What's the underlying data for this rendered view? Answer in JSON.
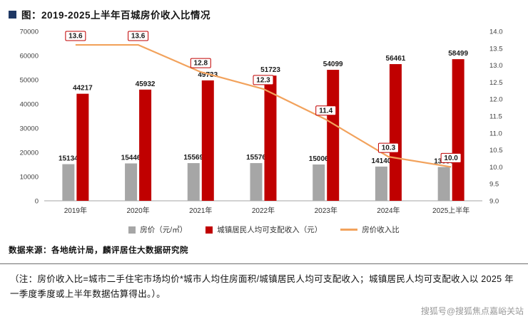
{
  "header": {
    "title": "图：2019-2025上半年百城房价收入比情况",
    "bullet_color": "#1f3864"
  },
  "chart_data": {
    "type": "combo-bar-line",
    "title": "图：2019-2025上半年百城房价收入比情况",
    "categories": [
      "2019年",
      "2020年",
      "2021年",
      "2022年",
      "2023年",
      "2024年",
      "2025上半年"
    ],
    "series": [
      {
        "name": "房价（元/㎡）",
        "type": "bar",
        "axis": "left",
        "color": "#a6a6a6",
        "values": [
          15134,
          15446,
          15569,
          15576,
          15006,
          14140,
          13956
        ]
      },
      {
        "name": "城镇居民人均可支配收入（元）",
        "type": "bar",
        "axis": "left",
        "color": "#c00000",
        "values": [
          44217,
          45932,
          49733,
          51723,
          54099,
          56461,
          58499
        ]
      },
      {
        "name": "房价收入比",
        "type": "line",
        "axis": "right",
        "color": "#f2a25c",
        "values": [
          13.6,
          13.6,
          12.8,
          12.3,
          11.4,
          10.3,
          10.0
        ]
      }
    ],
    "left_axis": {
      "min": 0,
      "max": 70000,
      "ticks": [
        "70000",
        "60000",
        "50000",
        "40000",
        "30000",
        "20000",
        "10000",
        "0"
      ]
    },
    "right_axis": {
      "min": 9.0,
      "max": 14.0,
      "ticks": [
        "14.0",
        "13.5",
        "13.0",
        "12.5",
        "12.0",
        "11.5",
        "11.0",
        "10.5",
        "10.0",
        "9.5",
        "9.0"
      ]
    },
    "grid": false,
    "legend_position": "bottom",
    "label_box": {
      "fill": "#ffffff",
      "border": "#c00000",
      "text": "#1a1a1a"
    }
  },
  "footer": {
    "source": "数据来源：各地统计局，麟评居住大数据研究院",
    "note": "（注：房价收入比=城市二手住宅市场均价*城市人均住房面积/城镇居民人均可支配收入；城镇居民人均可支配收入以 2025 年一季度季度或上半年数据估算得出。）。",
    "watermark": "搜狐号@搜狐焦点嘉峪关站"
  }
}
